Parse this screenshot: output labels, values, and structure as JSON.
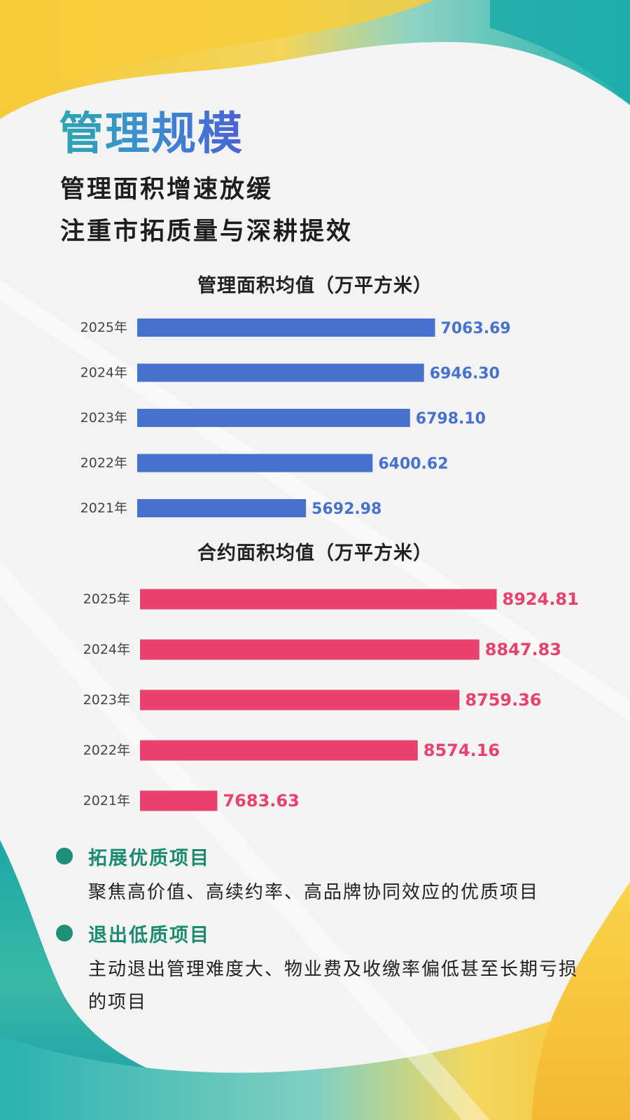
{
  "title": "管理规模",
  "subtitle_lines": [
    "管理面积增速放缓",
    "注重市拓质量与深耕提效"
  ],
  "colors": {
    "bar_manage": "#4672cd",
    "bar_contract": "#e9416d",
    "accent_green": "#1f9078"
  },
  "chart_data": [
    {
      "type": "bar",
      "orientation": "horizontal",
      "title": "管理面积均值（万平方米）",
      "categories": [
        "2025年",
        "2024年",
        "2023年",
        "2022年",
        "2021年"
      ],
      "values": [
        7063.69,
        6946.3,
        6798.1,
        6400.62,
        5692.98
      ],
      "value_labels": [
        "7063.69",
        "6946.30",
        "6798.10",
        "6400.62",
        "5692.98"
      ],
      "color": "#4672cd"
    },
    {
      "type": "bar",
      "orientation": "horizontal",
      "title": "合约面积均值（万平方米）",
      "categories": [
        "2025年",
        "2024年",
        "2023年",
        "2022年",
        "2021年"
      ],
      "values": [
        8924.81,
        8847.83,
        8759.36,
        8574.16,
        7683.63
      ],
      "value_labels": [
        "8924.81",
        "8847.83",
        "8759.36",
        "8574.16",
        "7683.63"
      ],
      "color": "#e9416d"
    }
  ],
  "bullets": [
    {
      "title": "拓展优质项目",
      "text": "聚焦高价值、高续约率、高品牌协同效应的优质项目",
      "icon": "circle-bullet-icon"
    },
    {
      "title": "退出低质项目",
      "text": "主动退出管理难度大、物业费及收缴率偏低甚至长期亏损的项目",
      "icon": "circle-bullet-icon"
    }
  ]
}
